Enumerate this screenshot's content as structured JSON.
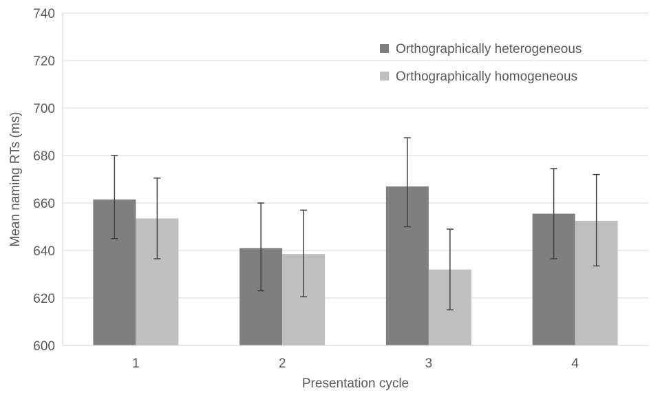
{
  "chart_data": {
    "type": "bar",
    "categories": [
      "1",
      "2",
      "3",
      "4"
    ],
    "series": [
      {
        "name": "Orthographically heterogeneous",
        "color": "#7f7f7f",
        "values": [
          661.5,
          641,
          667,
          655.5
        ],
        "error_low": [
          645,
          623,
          650,
          636.5
        ],
        "error_high": [
          680,
          660,
          687.5,
          674.5
        ]
      },
      {
        "name": "Orthographically homogeneous",
        "color": "#bfbfbf",
        "values": [
          653.5,
          638.5,
          632,
          652.5
        ],
        "error_low": [
          636.5,
          620.5,
          615,
          633.5
        ],
        "error_high": [
          670.5,
          657,
          649,
          672
        ]
      }
    ],
    "title": "",
    "xlabel": "Presentation cycle",
    "ylabel": "Mean naming RTs (ms)",
    "ylim": [
      600,
      740
    ],
    "yticks": [
      600,
      620,
      640,
      660,
      680,
      700,
      720,
      740
    ],
    "grid": true,
    "legend_position": "top-right",
    "axis_color": "#d9d9d9",
    "text_color": "#595959",
    "error_bar_color": "#404040"
  }
}
